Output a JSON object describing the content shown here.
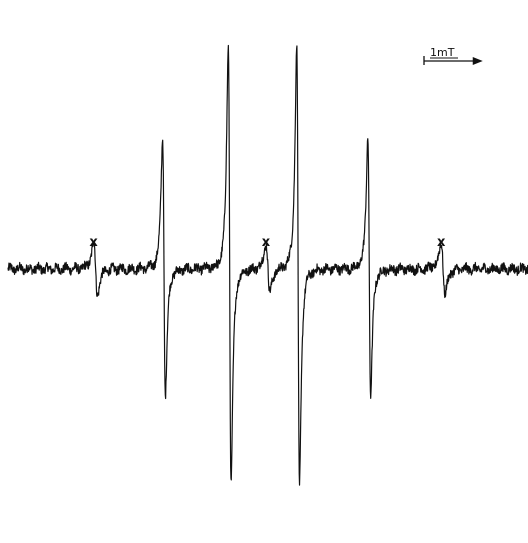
{
  "chart_data": {
    "type": "line",
    "title": "",
    "xlabel": "",
    "ylabel": "",
    "scale_bar": {
      "label": "1mT",
      "length_mT": 1
    },
    "marker_symbol": "x",
    "x_unit": "mT",
    "xlim": [
      0,
      9.5
    ],
    "ylim": [
      -2.6,
      2.5
    ],
    "grid": false,
    "lines": [
      {
        "center": 2.85,
        "amplitude": 1.5
      },
      {
        "center": 4.05,
        "amplitude": 2.55
      },
      {
        "center": 5.3,
        "amplitude": 2.55
      },
      {
        "center": 6.6,
        "amplitude": 1.5
      }
    ],
    "marked_lines": [
      {
        "center": 1.6,
        "amplitude": 0.3,
        "label": "x"
      },
      {
        "center": 4.75,
        "amplitude": 0.28,
        "label": "x"
      },
      {
        "center": 7.95,
        "amplitude": 0.3,
        "label": "x"
      }
    ],
    "line_color": "#111111"
  }
}
